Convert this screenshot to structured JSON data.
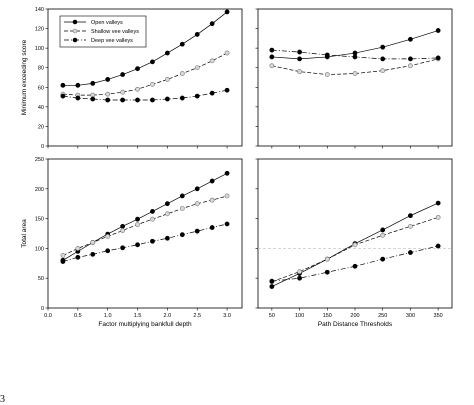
{
  "page_number": "3",
  "chart_data": [
    {
      "type": "line",
      "panel": "top-left",
      "xlabel": "",
      "ylabel": "Minimum exceeding score",
      "xlim": [
        0,
        3.25
      ],
      "ylim": [
        0,
        140
      ],
      "xticks": [
        0.0,
        0.5,
        1.0,
        1.5,
        2.0,
        2.5,
        3.0
      ],
      "xtick_labels": [],
      "yticks": [
        0,
        20,
        40,
        60,
        80,
        100,
        120,
        140
      ],
      "ytick_labels": [
        "0",
        "20",
        "40",
        "60",
        "80",
        "100",
        "120",
        "140"
      ],
      "legend": "top-left",
      "x": [
        0.25,
        0.5,
        0.75,
        1.0,
        1.25,
        1.5,
        1.75,
        2.0,
        2.25,
        2.5,
        2.75,
        3.0
      ],
      "series": [
        {
          "name": "Open valleys",
          "style": "solid",
          "marker": "filled-circle",
          "values": [
            62,
            62,
            64,
            68,
            73,
            79,
            86,
            95,
            104,
            114,
            125,
            137
          ]
        },
        {
          "name": "Shallow vee valleys",
          "style": "dashed",
          "marker": "open-circle",
          "values": [
            53,
            52,
            52,
            53,
            55,
            58,
            63,
            68,
            74,
            80,
            87,
            95
          ]
        },
        {
          "name": "Deep vee valleys",
          "style": "dash-dot",
          "marker": "filled-circle",
          "values": [
            51,
            49,
            48,
            47,
            47,
            47,
            47,
            48,
            49,
            51,
            54,
            57
          ]
        }
      ]
    },
    {
      "type": "line",
      "panel": "top-right",
      "xlabel": "",
      "ylabel": "",
      "xlim": [
        25,
        375
      ],
      "ylim": [
        0,
        140
      ],
      "xticks": [
        50,
        100,
        150,
        200,
        250,
        300,
        350
      ],
      "xtick_labels": [],
      "yticks": [
        0,
        20,
        40,
        60,
        80,
        100,
        120,
        140
      ],
      "ytick_labels": [],
      "x": [
        50,
        100,
        150,
        200,
        250,
        300,
        350
      ],
      "series": [
        {
          "name": "Open valleys",
          "style": "solid",
          "marker": "filled-circle",
          "values": [
            91,
            89,
            91,
            95,
            101,
            109,
            118
          ]
        },
        {
          "name": "Shallow vee valleys",
          "style": "dashed",
          "marker": "open-circle",
          "values": [
            82,
            76,
            73,
            74,
            77,
            82,
            89
          ]
        },
        {
          "name": "Deep vee valleys",
          "style": "dash-dot",
          "marker": "filled-circle",
          "values": [
            98,
            96,
            93,
            91,
            89,
            89,
            90
          ]
        }
      ]
    },
    {
      "type": "line",
      "panel": "bottom-left",
      "xlabel": "Factor multiplying bankfull depth",
      "ylabel": "Total area",
      "xlim": [
        0,
        3.25
      ],
      "ylim": [
        0,
        250
      ],
      "xticks": [
        0.0,
        0.5,
        1.0,
        1.5,
        2.0,
        2.5,
        3.0
      ],
      "xtick_labels": [
        "0.0",
        "0.5",
        "1.0",
        "1.5",
        "2.0",
        "2.5",
        "3.0"
      ],
      "yticks": [
        0,
        50,
        100,
        150,
        200,
        250
      ],
      "ytick_labels": [
        "0",
        "50",
        "100",
        "150",
        "200",
        "250"
      ],
      "x": [
        0.25,
        0.5,
        0.75,
        1.0,
        1.25,
        1.5,
        1.75,
        2.0,
        2.25,
        2.5,
        2.75,
        3.0
      ],
      "series": [
        {
          "name": "Open valleys",
          "style": "solid",
          "marker": "filled-circle",
          "values": [
            80,
            95,
            110,
            124,
            137,
            149,
            162,
            175,
            188,
            200,
            213,
            226
          ]
        },
        {
          "name": "Shallow vee valleys",
          "style": "dashed",
          "marker": "open-circle",
          "values": [
            88,
            100,
            110,
            120,
            130,
            140,
            149,
            158,
            167,
            175,
            181,
            188
          ]
        },
        {
          "name": "Deep vee valleys",
          "style": "dash-dot",
          "marker": "filled-circle",
          "values": [
            78,
            85,
            90,
            96,
            101,
            106,
            112,
            117,
            123,
            129,
            135,
            141
          ]
        }
      ]
    },
    {
      "type": "line",
      "panel": "bottom-right",
      "xlabel": "Path Distance Thresholds",
      "ylabel": "",
      "xlim": [
        25,
        375
      ],
      "ylim": [
        0,
        250
      ],
      "xticks": [
        50,
        100,
        150,
        200,
        250,
        300,
        350
      ],
      "xtick_labels": [
        "50",
        "100",
        "150",
        "200",
        "250",
        "300",
        "350"
      ],
      "yticks": [
        0,
        50,
        100,
        150,
        200,
        250
      ],
      "ytick_labels": [],
      "reference_line_y": 100,
      "x": [
        50,
        100,
        150,
        200,
        250,
        300,
        350
      ],
      "series": [
        {
          "name": "Open valleys",
          "style": "solid",
          "marker": "filled-circle",
          "values": [
            36,
            58,
            82,
            108,
            131,
            155,
            176
          ]
        },
        {
          "name": "Shallow vee valleys",
          "style": "dashed",
          "marker": "open-circle",
          "values": [
            44,
            61,
            82,
            106,
            122,
            137,
            152
          ]
        },
        {
          "name": "Deep vee valleys",
          "style": "dash-dot",
          "marker": "filled-circle",
          "values": [
            45,
            50,
            60,
            70,
            82,
            93,
            104
          ]
        }
      ]
    }
  ]
}
